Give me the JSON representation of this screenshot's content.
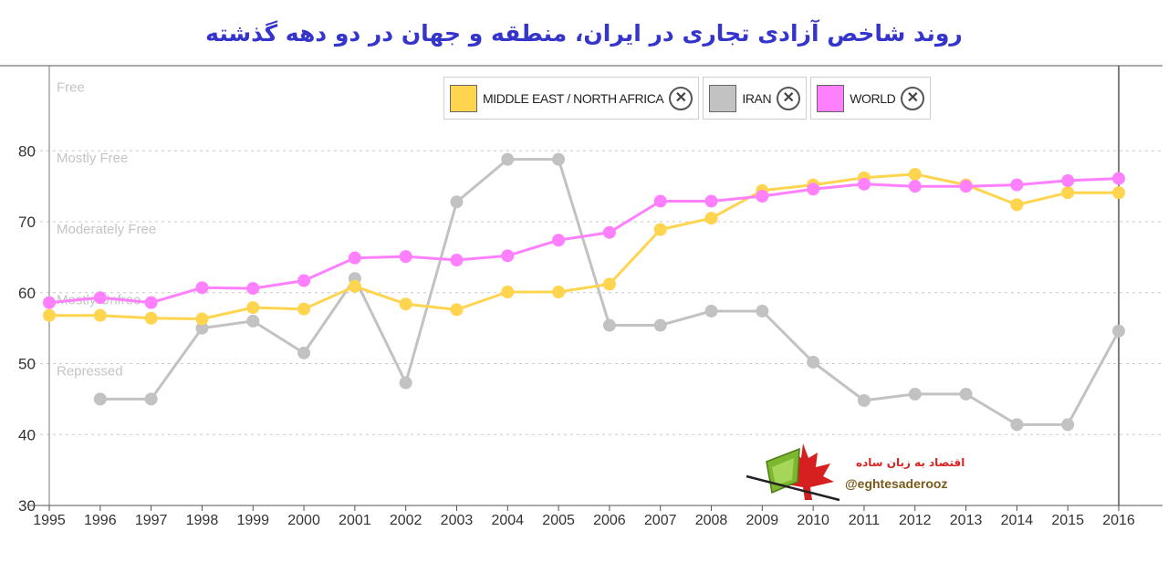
{
  "title": "روند شاخص آزادی تجاری در ایران، منطقه و جهان در دو دهه گذشته",
  "legend": [
    {
      "label": "MIDDLE EAST / NORTH AFRICA",
      "color": "#ffd54f"
    },
    {
      "label": "IRAN",
      "color": "#c2c2c2"
    },
    {
      "label": "WORLD",
      "color": "#ff80ff"
    }
  ],
  "watermark": {
    "text_fa": "اقتصاد به زبان ساده",
    "handle": "@eghtesaderooz"
  },
  "chart_data": {
    "type": "line",
    "title": "روند شاخص آزادی تجاری در ایران، منطقه و جهان در دو دهه گذشته",
    "x": [
      1995,
      1996,
      1997,
      1998,
      1999,
      2000,
      2001,
      2002,
      2003,
      2004,
      2005,
      2006,
      2007,
      2008,
      2009,
      2010,
      2011,
      2012,
      2013,
      2014,
      2015,
      2016
    ],
    "ylim": [
      30,
      92
    ],
    "yticks": [
      30,
      40,
      50,
      60,
      70,
      80
    ],
    "grid": true,
    "legend_position": "top-right",
    "bands": [
      {
        "label": "Free",
        "value": 89
      },
      {
        "label": "Mostly Free",
        "value": 79
      },
      {
        "label": "Moderately Free",
        "value": 69
      },
      {
        "label": "Mostly Unfree",
        "value": 59
      },
      {
        "label": "Repressed",
        "value": 49
      }
    ],
    "series": [
      {
        "name": "IRAN",
        "color": "#c2c2c2",
        "values": [
          null,
          45,
          45,
          55,
          56,
          51.5,
          62,
          47.3,
          72.8,
          78.8,
          78.8,
          55.4,
          55.4,
          57.4,
          57.4,
          50.2,
          44.8,
          45.7,
          45.7,
          41.4,
          41.4,
          54.6
        ]
      },
      {
        "name": "MIDDLE EAST / NORTH AFRICA",
        "color": "#ffd54f",
        "values": [
          56.8,
          56.8,
          56.4,
          56.3,
          57.9,
          57.7,
          60.9,
          58.4,
          57.6,
          60.1,
          60.1,
          61.2,
          68.9,
          70.5,
          74.4,
          75.2,
          76.2,
          76.7,
          75.2,
          72.4,
          74.1,
          74.1
        ]
      },
      {
        "name": "WORLD",
        "color": "#ff80ff",
        "values": [
          58.6,
          59.3,
          58.6,
          60.7,
          60.6,
          61.7,
          64.9,
          65.1,
          64.6,
          65.2,
          67.4,
          68.5,
          72.9,
          72.9,
          73.6,
          74.6,
          75.3,
          75,
          75,
          75.2,
          75.8,
          76.1
        ]
      }
    ]
  }
}
